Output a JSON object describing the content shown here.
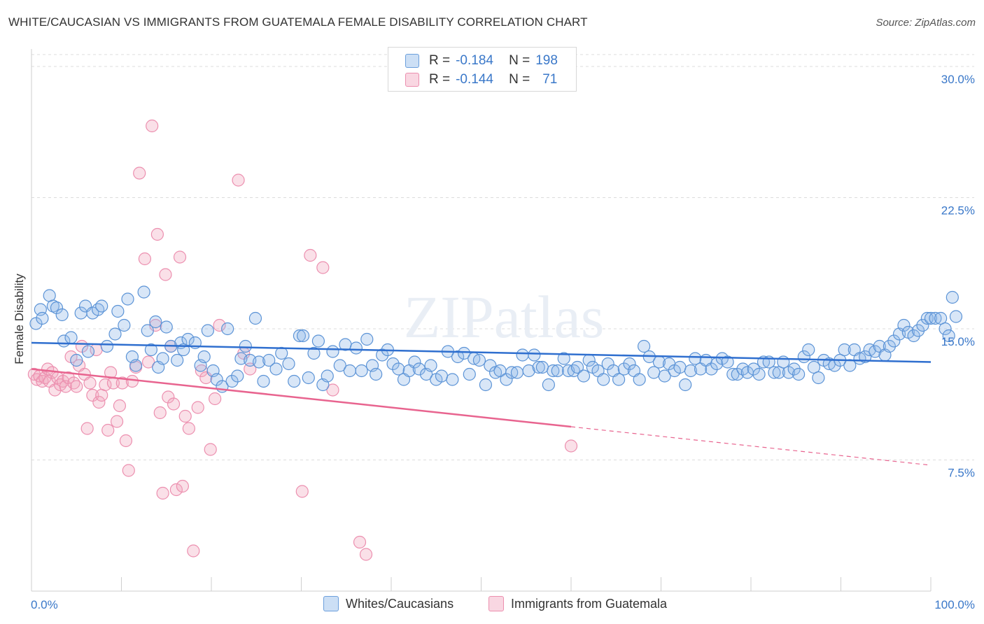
{
  "title": "WHITE/CAUCASIAN VS IMMIGRANTS FROM GUATEMALA FEMALE DISABILITY CORRELATION CHART",
  "source": "Source: ZipAtlas.com",
  "watermark": "ZIPatlas",
  "legend_top": {
    "r_label": "R =",
    "n_label": "N =",
    "rows": [
      {
        "r": "-0.184",
        "n": "198",
        "color": "#8fb8e8"
      },
      {
        "r": "-0.144",
        "n": "71",
        "color": "#f2a6be"
      }
    ]
  },
  "colors": {
    "blue_fill": "rgba(143,184,232,0.35)",
    "blue_stroke": "#5b93d6",
    "blue_line": "#2f6fcf",
    "pink_fill": "rgba(242,166,190,0.35)",
    "pink_stroke": "#ec8faf",
    "pink_line": "#e8648f",
    "grid": "#dcdcdc",
    "axis_text": "#3a78c9"
  },
  "chart_data": {
    "type": "scatter",
    "title": "WHITE/CAUCASIAN VS IMMIGRANTS FROM GUATEMALA FEMALE DISABILITY CORRELATION CHART",
    "xlabel": "",
    "ylabel": "Female Disability",
    "xlim": [
      0,
      100
    ],
    "ylim": [
      0,
      31
    ],
    "x_tick_labels": [
      "0.0%",
      "100.0%"
    ],
    "y_ticks": [
      7.5,
      15.0,
      22.5,
      30.0
    ],
    "y_tick_labels": [
      "7.5%",
      "15.0%",
      "22.5%",
      "30.0%"
    ],
    "grid": "horizontal dashed",
    "legend": "bottom-center",
    "series": [
      {
        "name": "Whites/Caucasians",
        "r": -0.184,
        "n": 198,
        "trend": {
          "x": [
            0,
            100
          ],
          "y": [
            14.2,
            13.1
          ],
          "dashed_from": null
        },
        "points": [
          [
            0.5,
            15.3
          ],
          [
            1,
            16.1
          ],
          [
            1.2,
            15.6
          ],
          [
            2,
            16.9
          ],
          [
            2.4,
            16.3
          ],
          [
            2.8,
            16.2
          ],
          [
            3.4,
            15.8
          ],
          [
            3.6,
            14.3
          ],
          [
            4.4,
            14.5
          ],
          [
            5,
            13.2
          ],
          [
            5.5,
            15.9
          ],
          [
            6,
            16.3
          ],
          [
            6.3,
            13.7
          ],
          [
            6.8,
            15.9
          ],
          [
            7.4,
            16.1
          ],
          [
            7.8,
            16.3
          ],
          [
            8.4,
            14.0
          ],
          [
            9.3,
            14.7
          ],
          [
            9.6,
            16.0
          ],
          [
            10.3,
            15.2
          ],
          [
            10.7,
            16.7
          ],
          [
            11.2,
            13.4
          ],
          [
            11.6,
            12.9
          ],
          [
            12.5,
            17.1
          ],
          [
            12.9,
            14.9
          ],
          [
            13.3,
            13.8
          ],
          [
            13.8,
            15.4
          ],
          [
            14.1,
            12.8
          ],
          [
            14.6,
            13.3
          ],
          [
            15,
            15.1
          ],
          [
            15.5,
            14.0
          ],
          [
            16.2,
            13.2
          ],
          [
            16.6,
            14.2
          ],
          [
            16.9,
            13.8
          ],
          [
            17.4,
            14.4
          ],
          [
            18.2,
            14.2
          ],
          [
            18.8,
            12.9
          ],
          [
            19.2,
            13.4
          ],
          [
            19.6,
            14.9
          ],
          [
            20.2,
            12.6
          ],
          [
            20.6,
            12.1
          ],
          [
            21.2,
            11.7
          ],
          [
            21.8,
            15.0
          ],
          [
            22.3,
            12.0
          ],
          [
            22.9,
            12.3
          ],
          [
            23.3,
            13.3
          ],
          [
            23.8,
            14.0
          ],
          [
            24.3,
            13.2
          ],
          [
            24.9,
            15.6
          ],
          [
            25.3,
            13.1
          ],
          [
            25.8,
            12.0
          ],
          [
            26.4,
            13.2
          ],
          [
            27.2,
            12.7
          ],
          [
            27.8,
            13.6
          ],
          [
            28.6,
            13.0
          ],
          [
            29.2,
            12.0
          ],
          [
            29.8,
            14.6
          ],
          [
            30.2,
            14.6
          ],
          [
            30.8,
            12.2
          ],
          [
            31.4,
            13.6
          ],
          [
            31.9,
            14.3
          ],
          [
            32.4,
            11.8
          ],
          [
            32.9,
            12.3
          ],
          [
            33.5,
            13.7
          ],
          [
            34.3,
            12.9
          ],
          [
            34.9,
            14.1
          ],
          [
            35.4,
            12.6
          ],
          [
            36.1,
            13.9
          ],
          [
            36.7,
            12.6
          ],
          [
            37.3,
            14.4
          ],
          [
            37.9,
            12.9
          ],
          [
            38.3,
            12.4
          ],
          [
            39.0,
            13.5
          ],
          [
            39.6,
            13.8
          ],
          [
            40.2,
            13.0
          ],
          [
            40.8,
            12.7
          ],
          [
            41.4,
            12.1
          ],
          [
            42.0,
            12.6
          ],
          [
            42.6,
            13.1
          ],
          [
            43.1,
            12.7
          ],
          [
            43.9,
            12.4
          ],
          [
            44.4,
            12.9
          ],
          [
            45.0,
            12.1
          ],
          [
            45.6,
            12.3
          ],
          [
            46.3,
            13.7
          ],
          [
            46.8,
            12.1
          ],
          [
            47.4,
            13.4
          ],
          [
            48.1,
            13.6
          ],
          [
            48.7,
            12.4
          ],
          [
            49.2,
            13.3
          ],
          [
            49.8,
            13.2
          ],
          [
            50.5,
            11.8
          ],
          [
            51.0,
            12.9
          ],
          [
            51.6,
            12.5
          ],
          [
            52.1,
            12.6
          ],
          [
            52.8,
            12.1
          ],
          [
            53.4,
            12.5
          ],
          [
            54.0,
            12.5
          ],
          [
            54.6,
            13.5
          ],
          [
            55.3,
            12.6
          ],
          [
            55.9,
            13.5
          ],
          [
            56.4,
            12.8
          ],
          [
            56.8,
            12.8
          ],
          [
            57.5,
            11.8
          ],
          [
            58.0,
            12.6
          ],
          [
            58.5,
            12.6
          ],
          [
            59.2,
            13.3
          ],
          [
            59.7,
            12.6
          ],
          [
            60.3,
            12.6
          ],
          [
            60.7,
            12.8
          ],
          [
            61.4,
            12.3
          ],
          [
            62.0,
            13.2
          ],
          [
            62.4,
            12.8
          ],
          [
            63.0,
            12.6
          ],
          [
            63.6,
            12.1
          ],
          [
            64.1,
            13.0
          ],
          [
            64.7,
            12.6
          ],
          [
            65.3,
            12.1
          ],
          [
            65.9,
            12.7
          ],
          [
            66.5,
            13.0
          ],
          [
            67.0,
            12.6
          ],
          [
            67.6,
            12.1
          ],
          [
            68.1,
            14.0
          ],
          [
            68.7,
            13.4
          ],
          [
            69.2,
            12.5
          ],
          [
            69.8,
            13.1
          ],
          [
            70.4,
            12.3
          ],
          [
            70.9,
            13.0
          ],
          [
            71.5,
            12.6
          ],
          [
            72.1,
            12.8
          ],
          [
            72.7,
            11.8
          ],
          [
            73.3,
            12.6
          ],
          [
            73.8,
            13.3
          ],
          [
            74.4,
            12.7
          ],
          [
            75.0,
            13.2
          ],
          [
            75.6,
            12.7
          ],
          [
            76.2,
            13.0
          ],
          [
            76.8,
            13.3
          ],
          [
            77.4,
            13.1
          ],
          [
            78.0,
            12.4
          ],
          [
            78.5,
            12.4
          ],
          [
            79.1,
            12.7
          ],
          [
            79.6,
            12.5
          ],
          [
            80.3,
            12.7
          ],
          [
            80.9,
            12.4
          ],
          [
            81.4,
            13.1
          ],
          [
            82.0,
            13.1
          ],
          [
            82.6,
            12.5
          ],
          [
            83.1,
            12.5
          ],
          [
            83.6,
            13.1
          ],
          [
            84.2,
            12.5
          ],
          [
            84.8,
            12.7
          ],
          [
            85.3,
            12.4
          ],
          [
            85.9,
            13.4
          ],
          [
            86.4,
            13.8
          ],
          [
            87.0,
            12.8
          ],
          [
            87.5,
            12.2
          ],
          [
            88.1,
            13.2
          ],
          [
            88.7,
            13.0
          ],
          [
            89.3,
            12.9
          ],
          [
            89.9,
            13.2
          ],
          [
            90.4,
            13.8
          ],
          [
            91.0,
            12.9
          ],
          [
            91.5,
            13.8
          ],
          [
            92.1,
            13.3
          ],
          [
            92.7,
            13.4
          ],
          [
            93.2,
            13.8
          ],
          [
            93.8,
            13.7
          ],
          [
            94.3,
            14.0
          ],
          [
            94.9,
            13.5
          ],
          [
            95.4,
            14.0
          ],
          [
            95.9,
            14.3
          ],
          [
            96.5,
            14.7
          ],
          [
            97.0,
            15.2
          ],
          [
            97.5,
            14.8
          ],
          [
            98.1,
            14.6
          ],
          [
            98.6,
            14.9
          ],
          [
            99.1,
            15.2
          ],
          [
            99.6,
            15.6
          ],
          [
            100.0,
            15.6
          ],
          [
            100.5,
            15.6
          ],
          [
            101.1,
            15.6
          ],
          [
            101.6,
            15.0
          ],
          [
            102.0,
            14.6
          ],
          [
            102.4,
            16.8
          ],
          [
            102.8,
            15.7
          ]
        ]
      },
      {
        "name": "Immigrants from Guatemala",
        "r": -0.144,
        "n": 71,
        "trend": {
          "x": [
            0,
            100
          ],
          "y": [
            12.7,
            7.2
          ],
          "dashed_from": 60
        },
        "points": [
          [
            0.3,
            12.4
          ],
          [
            0.6,
            12.1
          ],
          [
            0.9,
            12.3
          ],
          [
            1.2,
            12.0
          ],
          [
            1.5,
            12.2
          ],
          [
            1.8,
            12.7
          ],
          [
            2.0,
            12.0
          ],
          [
            2.3,
            12.5
          ],
          [
            2.6,
            11.5
          ],
          [
            2.9,
            12.2
          ],
          [
            3.2,
            11.8
          ],
          [
            3.5,
            12.0
          ],
          [
            3.8,
            11.7
          ],
          [
            4.1,
            12.2
          ],
          [
            4.4,
            13.4
          ],
          [
            4.7,
            11.9
          ],
          [
            5.0,
            11.7
          ],
          [
            5.3,
            12.9
          ],
          [
            5.6,
            14.0
          ],
          [
            5.9,
            12.4
          ],
          [
            6.2,
            9.3
          ],
          [
            6.5,
            11.9
          ],
          [
            6.8,
            11.2
          ],
          [
            7.2,
            13.8
          ],
          [
            7.5,
            10.8
          ],
          [
            7.8,
            11.2
          ],
          [
            8.2,
            11.8
          ],
          [
            8.5,
            9.2
          ],
          [
            8.8,
            12.5
          ],
          [
            9.1,
            11.9
          ],
          [
            9.5,
            9.7
          ],
          [
            9.8,
            10.6
          ],
          [
            10.1,
            11.9
          ],
          [
            10.5,
            8.6
          ],
          [
            10.8,
            6.9
          ],
          [
            11.2,
            12.0
          ],
          [
            11.6,
            12.8
          ],
          [
            12.0,
            23.9
          ],
          [
            12.6,
            19.0
          ],
          [
            13.0,
            13.1
          ],
          [
            13.4,
            26.6
          ],
          [
            13.8,
            15.2
          ],
          [
            14.0,
            20.4
          ],
          [
            14.3,
            10.2
          ],
          [
            14.6,
            5.6
          ],
          [
            14.9,
            18.1
          ],
          [
            15.2,
            11.1
          ],
          [
            15.5,
            14.0
          ],
          [
            15.8,
            10.7
          ],
          [
            16.1,
            5.8
          ],
          [
            16.5,
            19.1
          ],
          [
            16.8,
            6.0
          ],
          [
            17.1,
            10.0
          ],
          [
            17.5,
            9.3
          ],
          [
            18.0,
            2.3
          ],
          [
            18.5,
            10.5
          ],
          [
            18.9,
            12.6
          ],
          [
            19.4,
            12.2
          ],
          [
            19.9,
            8.1
          ],
          [
            20.4,
            11.0
          ],
          [
            20.9,
            15.2
          ],
          [
            23.0,
            23.5
          ],
          [
            23.6,
            13.6
          ],
          [
            24.3,
            12.7
          ],
          [
            30.1,
            5.7
          ],
          [
            31.0,
            19.2
          ],
          [
            32.4,
            18.5
          ],
          [
            33.5,
            11.5
          ],
          [
            36.5,
            2.8
          ],
          [
            37.2,
            2.1
          ],
          [
            60.0,
            8.3
          ]
        ]
      }
    ]
  }
}
